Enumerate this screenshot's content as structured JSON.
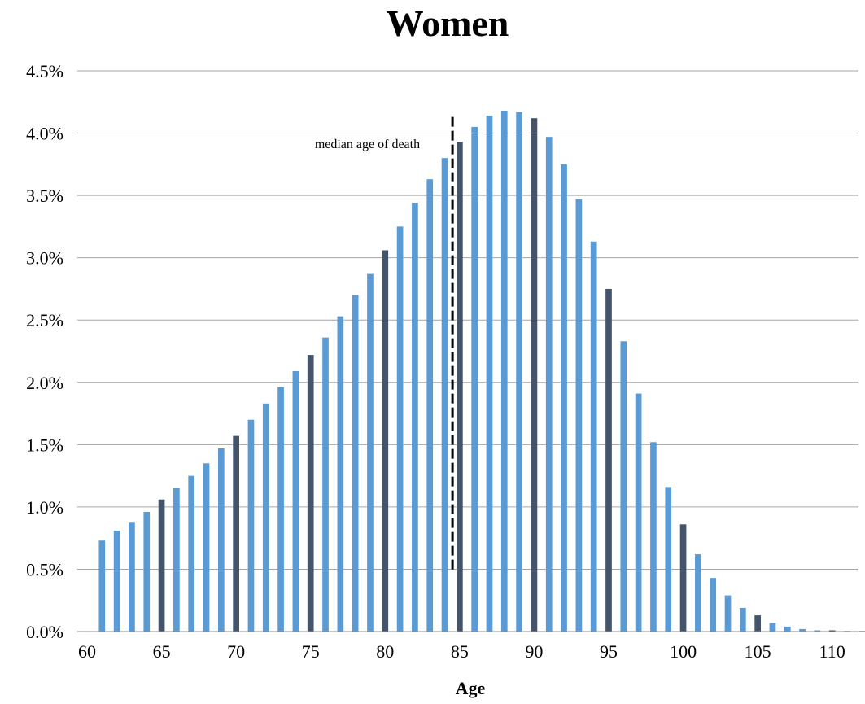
{
  "chart_data": {
    "type": "bar",
    "title": "Women",
    "xlabel": "Age",
    "ylabel": "",
    "xlim": [
      60,
      112
    ],
    "ylim": [
      0,
      4.5
    ],
    "x_ticks": [
      60,
      65,
      70,
      75,
      80,
      85,
      90,
      95,
      100,
      105,
      110
    ],
    "y_ticks": [
      "0.0%",
      "0.5%",
      "1.0%",
      "1.5%",
      "2.0%",
      "2.5%",
      "3.0%",
      "3.5%",
      "4.0%",
      "4.5%"
    ],
    "y_unit": "%",
    "grid": "horizontal",
    "bar_color": "#5b9bd5",
    "highlight_color": "#44546a",
    "highlight_every": 5,
    "x": [
      61,
      62,
      63,
      64,
      65,
      66,
      67,
      68,
      69,
      70,
      71,
      72,
      73,
      74,
      75,
      76,
      77,
      78,
      79,
      80,
      81,
      82,
      83,
      84,
      85,
      86,
      87,
      88,
      89,
      90,
      91,
      92,
      93,
      94,
      95,
      96,
      97,
      98,
      99,
      100,
      101,
      102,
      103,
      104,
      105,
      106,
      107,
      108,
      109,
      110,
      111,
      112
    ],
    "values": [
      0.73,
      0.81,
      0.88,
      0.96,
      1.06,
      1.15,
      1.25,
      1.35,
      1.47,
      1.57,
      1.7,
      1.83,
      1.96,
      2.09,
      2.22,
      2.36,
      2.53,
      2.7,
      2.87,
      3.06,
      3.25,
      3.44,
      3.63,
      3.8,
      3.93,
      4.05,
      4.14,
      4.18,
      4.17,
      4.12,
      3.97,
      3.75,
      3.47,
      3.13,
      2.75,
      2.33,
      1.91,
      1.52,
      1.16,
      0.86,
      0.62,
      0.43,
      0.29,
      0.19,
      0.13,
      0.07,
      0.04,
      0.02,
      0.01,
      0.01,
      0.005,
      0.005
    ],
    "annotations": [
      {
        "text": "median age of death",
        "x": 84.9,
        "style": "dashed vertical line"
      }
    ]
  }
}
